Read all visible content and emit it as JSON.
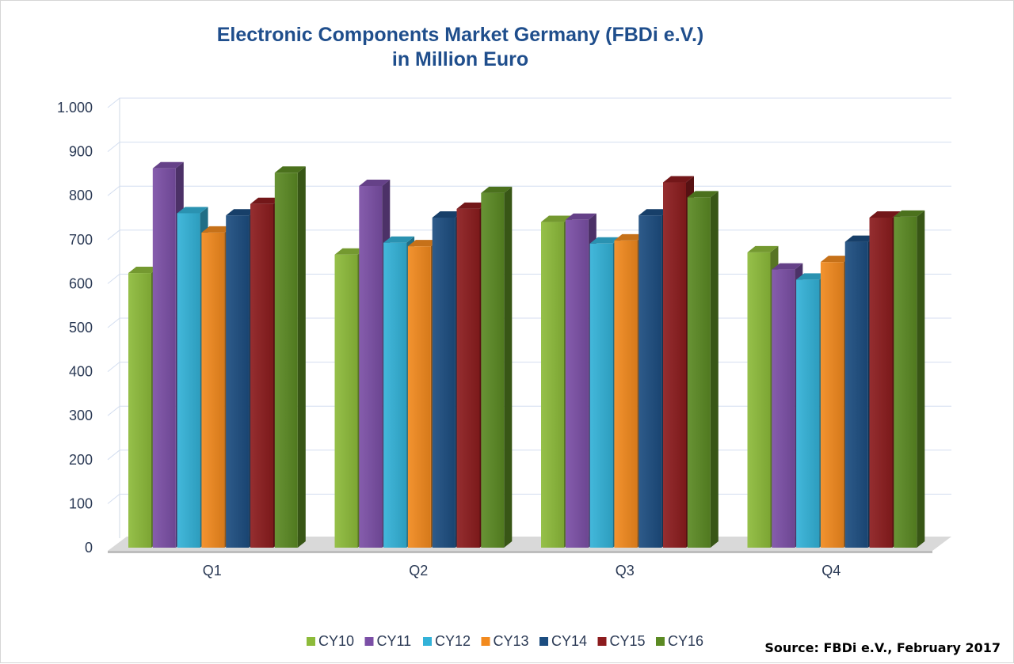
{
  "chart_data": {
    "type": "bar",
    "title": "Electronic Components Market Germany (FBDi e.V.)",
    "subtitle": "in Million Euro",
    "xlabel": "",
    "ylabel": "",
    "categories": [
      "Q1",
      "Q2",
      "Q3",
      "Q4"
    ],
    "ylim": [
      0,
      1000
    ],
    "yticks": [
      0,
      100,
      200,
      300,
      400,
      500,
      600,
      700,
      800,
      900,
      1000
    ],
    "ytick_labels": [
      "0",
      "100",
      "200",
      "300",
      "400",
      "500",
      "600",
      "700",
      "800",
      "900",
      "1.000"
    ],
    "grid": true,
    "legend_position": "bottom",
    "series": [
      {
        "name": "CY10",
        "color": "#8dbb3a",
        "values": [
          624,
          666,
          740,
          671
        ]
      },
      {
        "name": "CY11",
        "color": "#7b4fa6",
        "values": [
          862,
          822,
          745,
          632
        ]
      },
      {
        "name": "CY12",
        "color": "#33b2d8",
        "values": [
          760,
          693,
          691,
          609
        ]
      },
      {
        "name": "CY13",
        "color": "#f28a1e",
        "values": [
          716,
          685,
          698,
          649
        ]
      },
      {
        "name": "CY14",
        "color": "#1c4d80",
        "values": [
          755,
          750,
          755,
          695
        ]
      },
      {
        "name": "CY15",
        "color": "#8c1c1e",
        "values": [
          781,
          770,
          830,
          750
        ]
      },
      {
        "name": "CY16",
        "color": "#5b8a23",
        "values": [
          852,
          806,
          796,
          752
        ]
      }
    ],
    "source": "Source: FBDi e.V., February 2017"
  }
}
